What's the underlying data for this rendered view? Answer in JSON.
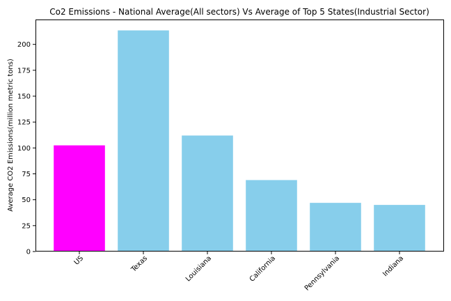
{
  "chart_data": {
    "type": "bar",
    "title": "Co2 Emissions - National Average(All sectors) Vs Average of Top 5 States(Industrial Sector)",
    "xlabel": "",
    "ylabel": "Average CO2 Emissions(million metric tons)",
    "categories": [
      "US",
      "Texas",
      "Louisiana",
      "California",
      "Pennsylvania",
      "Indiana"
    ],
    "values": [
      102.5,
      213.5,
      112,
      69,
      47,
      45
    ],
    "colors": [
      "#ff00ff",
      "#87ceeb",
      "#87ceeb",
      "#87ceeb",
      "#87ceeb",
      "#87ceeb"
    ],
    "ylim": [
      0,
      224
    ],
    "yticks": [
      0,
      25,
      50,
      75,
      100,
      125,
      150,
      175,
      200
    ],
    "grid": false
  }
}
